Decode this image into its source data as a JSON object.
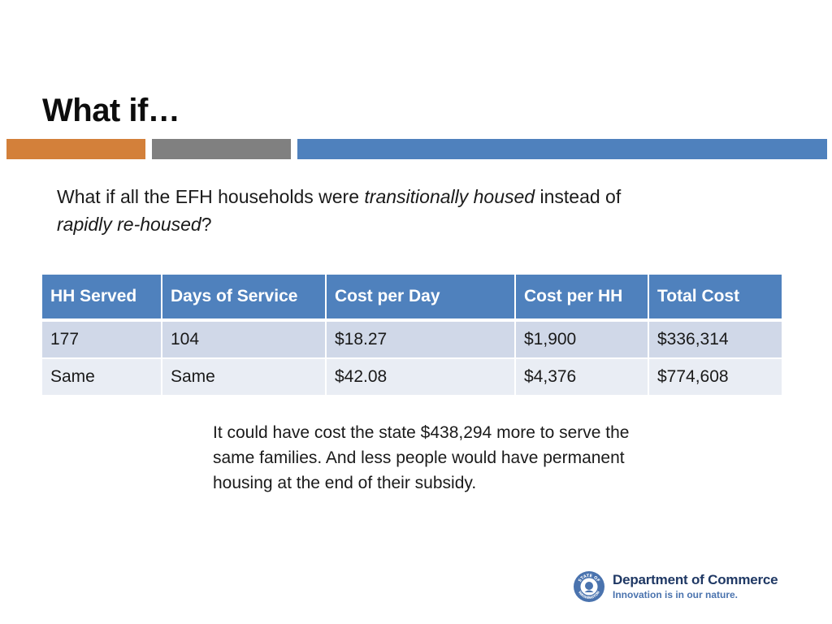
{
  "slide": {
    "title": "What if…"
  },
  "colors": {
    "accent_orange": "#D3803A",
    "accent_gray": "#808080",
    "accent_blue": "#4F81BD",
    "header_blue": "#4F81BD",
    "row_band_1": "#D0D8E8",
    "row_band_2": "#E9EDF4",
    "brand_navy": "#1F3864",
    "brand_blue": "#4A73AE"
  },
  "intro": {
    "part1": "What if all the EFH households were ",
    "em1": "transitionally housed",
    "part2": " instead of ",
    "em2": "rapidly re-housed",
    "part3": "?"
  },
  "table": {
    "headers": [
      "HH Served",
      "Days of Service",
      "Cost per Day",
      "Cost per HH",
      "Total Cost"
    ],
    "rows": [
      [
        "177",
        "104",
        "$18.27",
        "$1,900",
        "$336,314"
      ],
      [
        "Same",
        "Same",
        "$42.08",
        "$4,376",
        "$774,608"
      ]
    ]
  },
  "conclusion": {
    "text": "It could have cost the state $438,294 more to serve the same families. And less people would have permanent housing at the end of their subsidy."
  },
  "footer": {
    "org_name": "Department of Commerce",
    "tagline": "Innovation is in our nature.",
    "seal_icon": "state-seal-icon",
    "seal_text_top": "STATE OF",
    "seal_text_bottom": "WASHINGTON"
  }
}
